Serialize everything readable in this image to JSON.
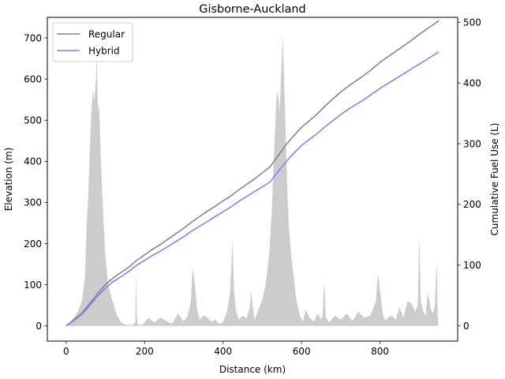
{
  "chart_data": {
    "type": "line",
    "title": "Gisborne-Auckland",
    "xlabel": "Distance (km)",
    "ylabel": "Elevation (m)",
    "y2label": "Cumulative Fuel Use (L)",
    "xlim": [
      -48,
      998
    ],
    "ylim": [
      -37,
      750
    ],
    "y2lim": [
      -25,
      508
    ],
    "xticks": [
      0,
      200,
      400,
      600,
      800
    ],
    "yticks": [
      0,
      100,
      200,
      300,
      400,
      500,
      600,
      700
    ],
    "y2ticks": [
      0,
      100,
      200,
      300,
      400,
      500
    ],
    "grid": false,
    "legend_position": "upper-left",
    "colors": {
      "regular": "#808080",
      "hybrid": "#7b7bf5",
      "elevation_fill": "#cccccc"
    },
    "elevation": {
      "name": "Elevation",
      "x": [
        0,
        10,
        20,
        30,
        40,
        48,
        52,
        56,
        60,
        64,
        68,
        72,
        76,
        78,
        80,
        82,
        84,
        86,
        88,
        92,
        96,
        100,
        106,
        112,
        120,
        130,
        140,
        150,
        160,
        170,
        176,
        178,
        180,
        182,
        186,
        195,
        210,
        225,
        240,
        255,
        270,
        285,
        300,
        310,
        318,
        322,
        326,
        330,
        334,
        340,
        350,
        360,
        370,
        380,
        390,
        400,
        410,
        418,
        424,
        428,
        432,
        440,
        450,
        460,
        468,
        472,
        476,
        480,
        488,
        495,
        502,
        510,
        518,
        524,
        530,
        536,
        540,
        544,
        548,
        552,
        556,
        560,
        564,
        568,
        574,
        580,
        586,
        592,
        598,
        604,
        610,
        620,
        632,
        640,
        650,
        654,
        658,
        662,
        670,
        685,
        700,
        715,
        730,
        745,
        760,
        775,
        790,
        794,
        798,
        802,
        808,
        814,
        820,
        830,
        840,
        850,
        860,
        870,
        880,
        890,
        896,
        900,
        904,
        910,
        916,
        922,
        930,
        936,
        940,
        944,
        948
      ],
      "y": [
        0,
        10,
        20,
        35,
        60,
        120,
        240,
        310,
        420,
        520,
        570,
        550,
        600,
        665,
        560,
        520,
        540,
        480,
        420,
        320,
        240,
        170,
        110,
        80,
        55,
        25,
        8,
        3,
        2,
        2,
        8,
        130,
        25,
        4,
        2,
        3,
        20,
        8,
        20,
        12,
        5,
        30,
        10,
        25,
        60,
        140,
        120,
        85,
        40,
        15,
        25,
        20,
        10,
        15,
        5,
        10,
        35,
        80,
        210,
        90,
        40,
        15,
        25,
        18,
        45,
        85,
        45,
        15,
        35,
        50,
        70,
        110,
        180,
        280,
        420,
        555,
        570,
        520,
        610,
        705,
        590,
        460,
        320,
        240,
        170,
        120,
        70,
        40,
        20,
        10,
        40,
        20,
        10,
        30,
        15,
        30,
        110,
        20,
        8,
        25,
        15,
        30,
        12,
        35,
        20,
        25,
        60,
        125,
        105,
        70,
        25,
        12,
        20,
        25,
        15,
        45,
        20,
        60,
        55,
        35,
        50,
        215,
        60,
        35,
        25,
        80,
        40,
        30,
        50,
        160,
        0
      ]
    },
    "series": [
      {
        "name": "Regular",
        "axis": "right",
        "color": "#808080",
        "x": [
          0,
          20,
          40,
          60,
          80,
          100,
          120,
          140,
          160,
          180,
          200,
          220,
          240,
          260,
          280,
          300,
          320,
          340,
          360,
          380,
          400,
          420,
          440,
          460,
          480,
          500,
          520,
          540,
          560,
          580,
          600,
          620,
          640,
          660,
          680,
          700,
          720,
          740,
          760,
          780,
          800,
          820,
          840,
          860,
          880,
          900,
          920,
          940,
          950
        ],
        "values": [
          0,
          10,
          21,
          37,
          53,
          68,
          79,
          88,
          97,
          108,
          117,
          126,
          134,
          143,
          152,
          161,
          171,
          180,
          189,
          197,
          206,
          214,
          224,
          233,
          242,
          252,
          262,
          280,
          298,
          313,
          327,
          338,
          349,
          362,
          374,
          385,
          395,
          404,
          413,
          423,
          434,
          443,
          452,
          461,
          470,
          480,
          489,
          498,
          503
        ]
      },
      {
        "name": "Hybrid",
        "axis": "right",
        "color": "#7b7bf5",
        "x": [
          0,
          20,
          40,
          60,
          80,
          100,
          120,
          140,
          160,
          180,
          200,
          220,
          240,
          260,
          280,
          300,
          320,
          340,
          360,
          380,
          400,
          420,
          440,
          460,
          480,
          500,
          520,
          540,
          560,
          580,
          600,
          620,
          640,
          660,
          680,
          700,
          720,
          740,
          760,
          780,
          800,
          820,
          840,
          860,
          880,
          900,
          920,
          940,
          950
        ],
        "values": [
          0,
          9,
          19,
          34,
          49,
          62,
          73,
          81,
          90,
          100,
          108,
          116,
          123,
          131,
          139,
          147,
          156,
          164,
          172,
          180,
          188,
          196,
          205,
          213,
          221,
          229,
          237,
          254,
          270,
          284,
          297,
          307,
          317,
          328,
          338,
          348,
          357,
          365,
          373,
          382,
          391,
          399,
          407,
          415,
          423,
          431,
          439,
          447,
          451
        ]
      }
    ]
  }
}
